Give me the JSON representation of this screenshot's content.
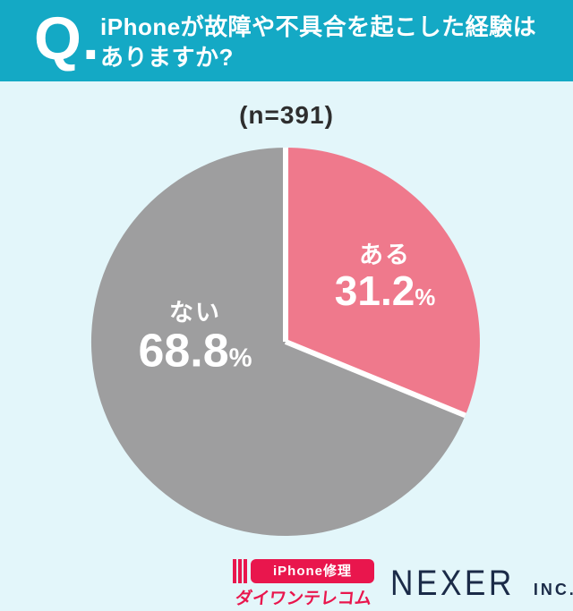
{
  "header": {
    "q_mark": "Q.",
    "title_line1": "iPhoneが故障や不具合を起こした経験は",
    "title_line2": "ありますか?"
  },
  "survey": {
    "sample_label": "(n=391)"
  },
  "chart_data": {
    "type": "pie",
    "title": "iPhoneが故障や不具合を起こした経験はありますか?",
    "sample_size": 391,
    "start_angle": 0,
    "direction": "clockwise",
    "slices": [
      {
        "name": "ある",
        "value": 31.2,
        "unit": "%",
        "color": "#ef798c"
      },
      {
        "name": "ない",
        "value": 68.8,
        "unit": "%",
        "color": "#9e9e9f"
      }
    ],
    "divider_color": "#ffffff",
    "label_color": "#ffffff",
    "legend": "none",
    "labels_inside": true
  },
  "footer": {
    "daiwan_logo": {
      "badge": "iPhone修理",
      "name": "ダイワンテレコム",
      "color": "#e9164d"
    },
    "nexer_logo": {
      "name": "NEXER",
      "suffix": "INC.",
      "color": "#1b2b48"
    }
  },
  "colors": {
    "header_bg": "#14a9c5",
    "page_bg": "#e3f6fa",
    "header_text": "#ffffff",
    "sample_text": "#2e2e2e",
    "slice_aru": "#ef798c",
    "slice_nai": "#9e9e9f"
  }
}
